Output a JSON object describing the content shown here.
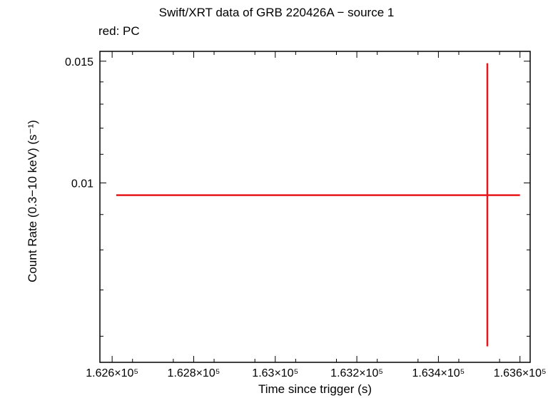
{
  "chart_data": {
    "type": "scatter",
    "title": "Swift/XRT data of GRB 220426A − source 1",
    "subtitle": "red: PC",
    "xlabel": "Time since trigger (s)",
    "ylabel": "Count Rate (0.3−10 keV) (s⁻¹)",
    "xlim": [
      162570,
      163625
    ],
    "ylim": [
      0.0055,
      0.0155
    ],
    "y_scale": "log",
    "x_ticks": [
      {
        "value": 162600,
        "label": "1.626×10⁵"
      },
      {
        "value": 162800,
        "label": "1.628×10⁵"
      },
      {
        "value": 163000,
        "label": "1.63×10⁵"
      },
      {
        "value": 163200,
        "label": "1.632×10⁵"
      },
      {
        "value": 163400,
        "label": "1.634×10⁵"
      },
      {
        "value": 163600,
        "label": "1.636×10⁵"
      }
    ],
    "y_ticks": [
      {
        "value": 0.015,
        "label": "0.015"
      },
      {
        "value": 0.01,
        "label": "0.01"
      }
    ],
    "series": [
      {
        "name": "PC",
        "color": "#e8161a",
        "points": [
          {
            "x": 163520,
            "y": 0.0096,
            "x_lo": 162610,
            "x_hi": 163600,
            "y_lo": 0.0058,
            "y_hi": 0.0149
          }
        ]
      }
    ]
  }
}
